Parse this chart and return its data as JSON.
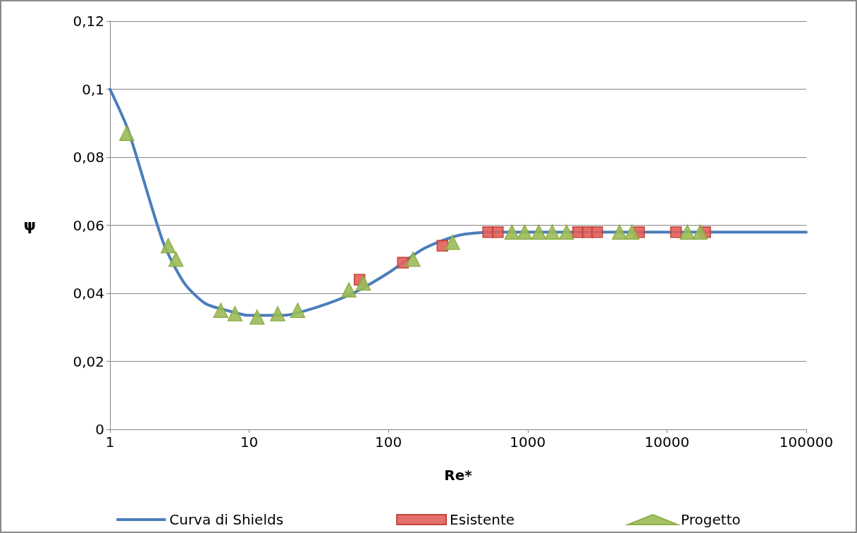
{
  "chart_data": {
    "type": "scatter",
    "xlabel": "Re*",
    "ylabel": "ψ",
    "log": "x",
    "xlim": [
      1,
      100000
    ],
    "xticks": [
      1,
      10,
      100,
      1000,
      10000,
      100000
    ],
    "ylim": [
      0,
      0.12
    ],
    "yticks": [
      {
        "value": 0,
        "label": "0"
      },
      {
        "value": 0.02,
        "label": "0,02"
      },
      {
        "value": 0.04,
        "label": "0,04"
      },
      {
        "value": 0.06,
        "label": "0,06"
      },
      {
        "value": 0.08,
        "label": "0,08"
      },
      {
        "value": 0.1,
        "label": "0,1"
      },
      {
        "value": 0.12,
        "label": "0,12"
      }
    ],
    "grid": "y",
    "legend": "bottom",
    "series": [
      {
        "name": "Curva di Shields",
        "type": "line",
        "marker": "none",
        "color": "#4a7ebb",
        "x": [
          1,
          1.35,
          2.41,
          3.42,
          4.84,
          6.86,
          10,
          17.4,
          31,
          55.5,
          100,
          177,
          316,
          562,
          1000,
          10000,
          100000
        ],
        "values": [
          0.1,
          0.088,
          0.055,
          0.043,
          0.037,
          0.035,
          0.0335,
          0.0335,
          0.036,
          0.04,
          0.046,
          0.053,
          0.057,
          0.058,
          0.058,
          0.058,
          0.058
        ]
      },
      {
        "name": "Esistente",
        "marker": "square",
        "color": "#e0605c",
        "x": [
          62,
          127,
          244,
          520,
          610,
          2300,
          2700,
          3150,
          6300,
          11600,
          18800
        ],
        "values": [
          0.044,
          0.049,
          0.054,
          0.058,
          0.058,
          0.058,
          0.058,
          0.058,
          0.058,
          0.058,
          0.058
        ]
      },
      {
        "name": "Progetto",
        "marker": "triangle",
        "color": "#9bbb59",
        "x": [
          1.32,
          2.62,
          2.98,
          6.25,
          7.9,
          11.4,
          16,
          22.3,
          52,
          66,
          150,
          288,
          770,
          950,
          1200,
          1500,
          1900,
          4560,
          5600,
          14000,
          17300
        ],
        "values": [
          0.087,
          0.054,
          0.05,
          0.035,
          0.034,
          0.033,
          0.034,
          0.035,
          0.041,
          0.043,
          0.05,
          0.055,
          0.058,
          0.058,
          0.058,
          0.058,
          0.058,
          0.058,
          0.058,
          0.058,
          0.058
        ]
      }
    ]
  }
}
